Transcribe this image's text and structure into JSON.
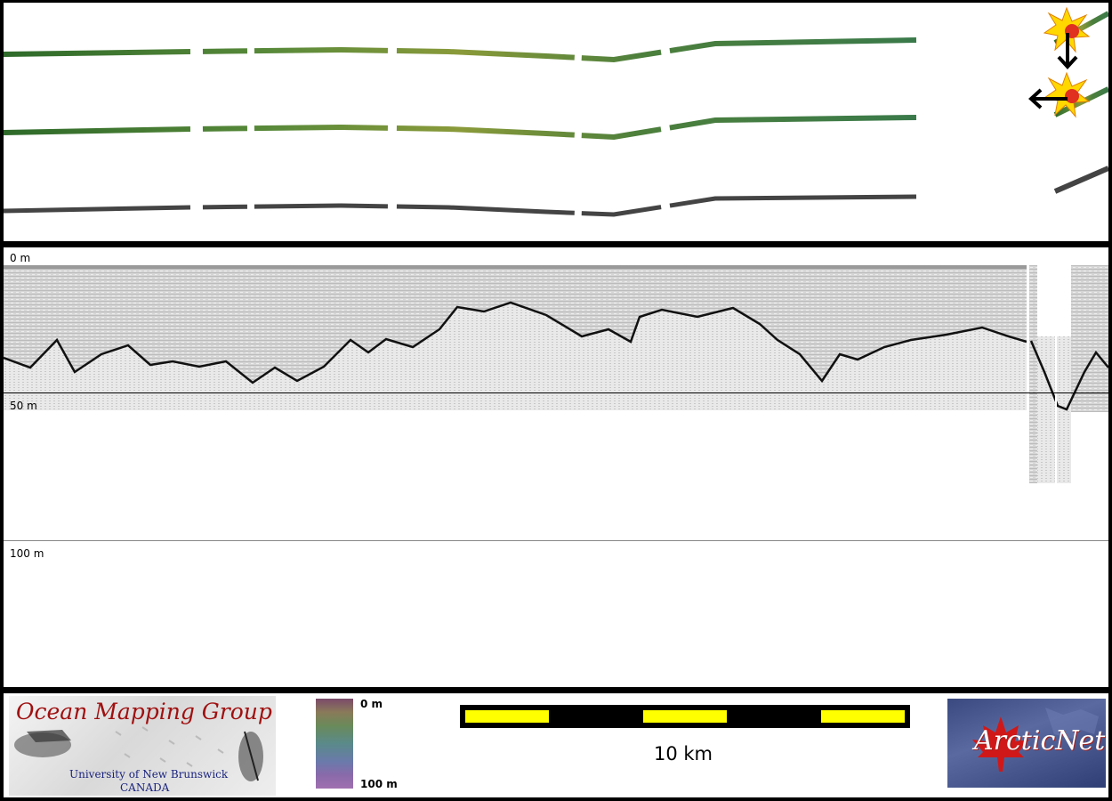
{
  "depth_labels": {
    "top": "0 m",
    "middle": "50 m",
    "bottom": "100 m"
  },
  "colorbar": {
    "top_label": "0 m",
    "bottom_label": "100 m"
  },
  "scalebar": {
    "label": "10 km",
    "bar_color": "#ffff00"
  },
  "logos": {
    "omg": {
      "title": "Ocean Mapping Group",
      "university": "University of New Brunswick",
      "country": "CANADA"
    },
    "arcticnet": {
      "name": "ArcticNet"
    }
  },
  "icons": [
    "explosion-icon",
    "arrow-down-icon",
    "arrow-left-icon"
  ],
  "colors": {
    "swath_green": "#4f7d3a",
    "swath_grey": "#444444",
    "omg_red": "#a01010",
    "omg_blue": "#1a237e"
  }
}
